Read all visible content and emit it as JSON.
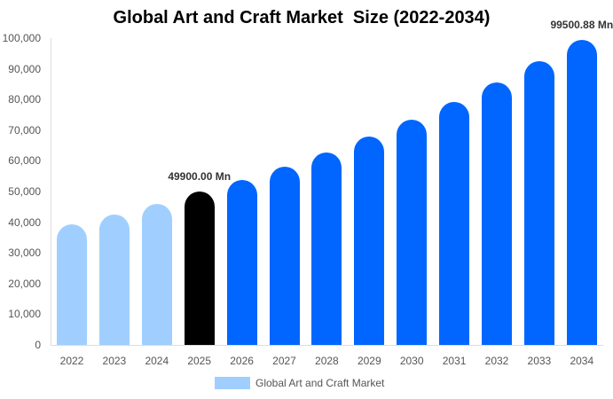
{
  "chart_data": {
    "type": "bar",
    "title": "Global Art and Craft Market  Size (2022-2034)",
    "categories": [
      "2022",
      "2023",
      "2024",
      "2025",
      "2026",
      "2027",
      "2028",
      "2029",
      "2030",
      "2031",
      "2032",
      "2033",
      "2034"
    ],
    "series": [
      {
        "name": "Global Art and Craft Market",
        "values": [
          39300,
          42500,
          46000,
          49900,
          53890,
          58200,
          62860,
          67890,
          73320,
          79180,
          85520,
          92360,
          99500.88
        ],
        "colors": [
          "#a0cfff",
          "#a0cfff",
          "#a0cfff",
          "#000000",
          "#0066ff",
          "#0066ff",
          "#0066ff",
          "#0066ff",
          "#0066ff",
          "#0066ff",
          "#0066ff",
          "#0066ff",
          "#0066ff"
        ]
      }
    ],
    "data_labels": [
      {
        "category": "2025",
        "text": "49900.00 Mn"
      },
      {
        "category": "2034",
        "text": "99500.88 Mn"
      }
    ],
    "xlabel": "",
    "ylabel": "",
    "ylim": [
      0,
      100000
    ],
    "yticks": [
      "0",
      "10,000",
      "20,000",
      "30,000",
      "40,000",
      "50,000",
      "60,000",
      "70,000",
      "80,000",
      "90,000",
      "100,000"
    ],
    "grid": false,
    "legend_position": "bottom"
  },
  "legend": {
    "label": "Global Art and Craft Market",
    "color": "#a0cfff"
  }
}
